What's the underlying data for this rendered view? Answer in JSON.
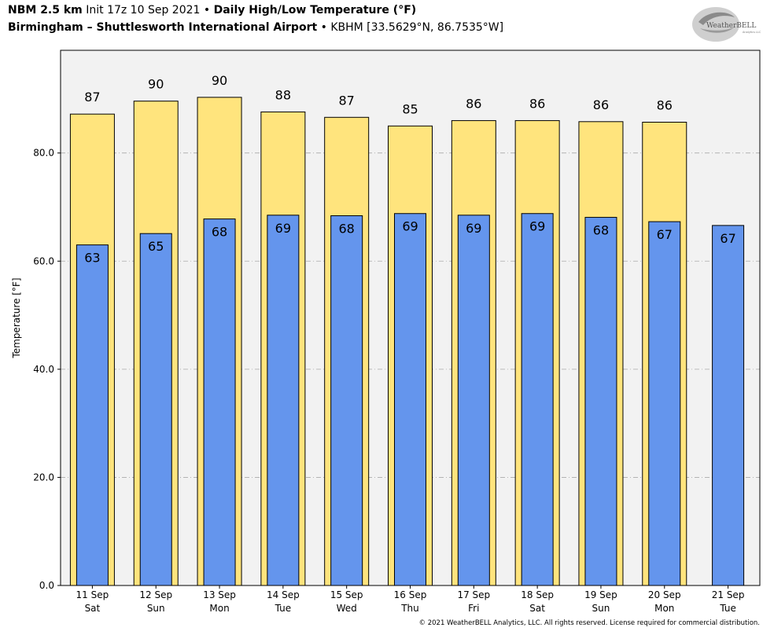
{
  "header": {
    "model": "NBM 2.5 km",
    "init": "Init 17z 10 Sep 2021",
    "separator": "•",
    "product": "Daily High/Low Temperature (°F)",
    "location": "Birmingham – Shuttlesworth International Airport",
    "station": "KBHM [33.5629°N, 86.7535°W]"
  },
  "logo": {
    "text": "WeatherBELL",
    "subtext": "Analytics LLC"
  },
  "copyright": "© 2021 WeatherBELL Analytics, LLC. All rights reserved. License required for commercial distribution.",
  "colors": {
    "high": "#ffe47d",
    "low": "#6495ed",
    "plot_bg": "#f2f2f2",
    "grid": "#aaaaaa"
  },
  "chart_data": {
    "type": "bar",
    "ylabel": "Temperature [°F]",
    "ylim": [
      0,
      99
    ],
    "yticks": [
      0,
      20,
      40,
      60,
      80
    ],
    "ytick_labels": [
      "0.0",
      "20.0",
      "40.0",
      "60.0",
      "80.0"
    ],
    "grid": "horizontal dash-dot",
    "categories": [
      {
        "date": "11 Sep",
        "day": "Sat"
      },
      {
        "date": "12 Sep",
        "day": "Sun"
      },
      {
        "date": "13 Sep",
        "day": "Mon"
      },
      {
        "date": "14 Sep",
        "day": "Tue"
      },
      {
        "date": "15 Sep",
        "day": "Wed"
      },
      {
        "date": "16 Sep",
        "day": "Thu"
      },
      {
        "date": "17 Sep",
        "day": "Fri"
      },
      {
        "date": "18 Sep",
        "day": "Sat"
      },
      {
        "date": "19 Sep",
        "day": "Sun"
      },
      {
        "date": "20 Sep",
        "day": "Mon"
      },
      {
        "date": "21 Sep",
        "day": "Tue"
      }
    ],
    "series": [
      {
        "values": [
          87.2,
          89.6,
          90.3,
          87.6,
          86.6,
          85.0,
          86.0,
          86.0,
          85.8,
          85.7,
          null
        ],
        "labels": [
          "87",
          "90",
          "90",
          "88",
          "87",
          "85",
          "86",
          "86",
          "86",
          "86",
          ""
        ]
      },
      {
        "values": [
          63.0,
          65.1,
          67.8,
          68.5,
          68.4,
          68.8,
          68.5,
          68.8,
          68.1,
          67.3,
          66.6
        ],
        "labels": [
          "63",
          "65",
          "68",
          "69",
          "68",
          "69",
          "69",
          "69",
          "68",
          "67",
          "67"
        ]
      }
    ]
  }
}
